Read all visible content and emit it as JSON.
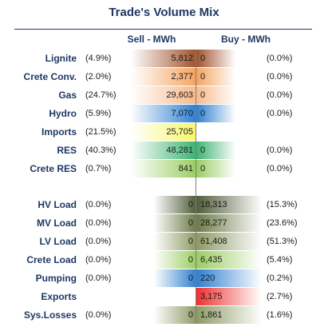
{
  "chart_data": {
    "type": "bar",
    "title": "Trade's Volume Mix",
    "columns": {
      "sell": "Sell - MWh",
      "buy": "Buy - MWh"
    },
    "groups": [
      {
        "rows": [
          {
            "label": "Lignite",
            "sell": 5812,
            "sell_pct": "(4.9%)",
            "buy": 0,
            "buy_pct": "(0.0%)",
            "color": "#a0522d"
          },
          {
            "label": "Crete Conv.",
            "sell": 2377,
            "sell_pct": "(2.0%)",
            "buy": 0,
            "buy_pct": "(0.0%)",
            "color": "#f4a460"
          },
          {
            "label": "Gas",
            "sell": 29603,
            "sell_pct": "(24.7%)",
            "buy": 0,
            "buy_pct": "(0.0%)",
            "color": "#f8b98a"
          },
          {
            "label": "Hydro",
            "sell": 7070,
            "sell_pct": "(5.9%)",
            "buy": 0,
            "buy_pct": "(0.0%)",
            "color": "#2e7fd0"
          },
          {
            "label": "Imports",
            "sell": 25705,
            "sell_pct": "(21.5%)",
            "buy": null,
            "buy_pct": "",
            "color": "#f7f76a"
          },
          {
            "label": "RES",
            "sell": 48281,
            "sell_pct": "(40.3%)",
            "buy": 0,
            "buy_pct": "(0.0%)",
            "color": "#3cb371"
          },
          {
            "label": "Crete RES",
            "sell": 841,
            "sell_pct": "(0.7%)",
            "buy": 0,
            "buy_pct": "(0.0%)",
            "color": "#9acd62"
          }
        ]
      },
      {
        "rows": [
          {
            "label": "HV Load",
            "sell": 0,
            "sell_pct": "(0.0%)",
            "buy": 18313,
            "buy_pct": "(15.3%)",
            "color": "#4f5d3a"
          },
          {
            "label": "MV Load",
            "sell": 0,
            "sell_pct": "(0.0%)",
            "buy": 28277,
            "buy_pct": "(23.6%)",
            "color": "#6b7a48"
          },
          {
            "label": "LV Load",
            "sell": 0,
            "sell_pct": "(0.0%)",
            "buy": 61408,
            "buy_pct": "(51.3%)",
            "color": "#8d9a64"
          },
          {
            "label": "Crete Load",
            "sell": 0,
            "sell_pct": "(0.0%)",
            "buy": 6435,
            "buy_pct": "(5.4%)",
            "color": "#9acd62"
          },
          {
            "label": "Pumping",
            "sell": 0,
            "sell_pct": "(0.0%)",
            "buy": 220,
            "buy_pct": "(0.2%)",
            "color": "#2e7fd0"
          },
          {
            "label": "Exports",
            "sell": null,
            "sell_pct": "",
            "buy": 3175,
            "buy_pct": "(2.7%)",
            "color": "#f03030"
          },
          {
            "label": "Sys.Losses",
            "sell": 0,
            "sell_pct": "(0.0%)",
            "buy": 1861,
            "buy_pct": "(1.6%)",
            "color": "#8d9a64"
          }
        ]
      }
    ]
  }
}
